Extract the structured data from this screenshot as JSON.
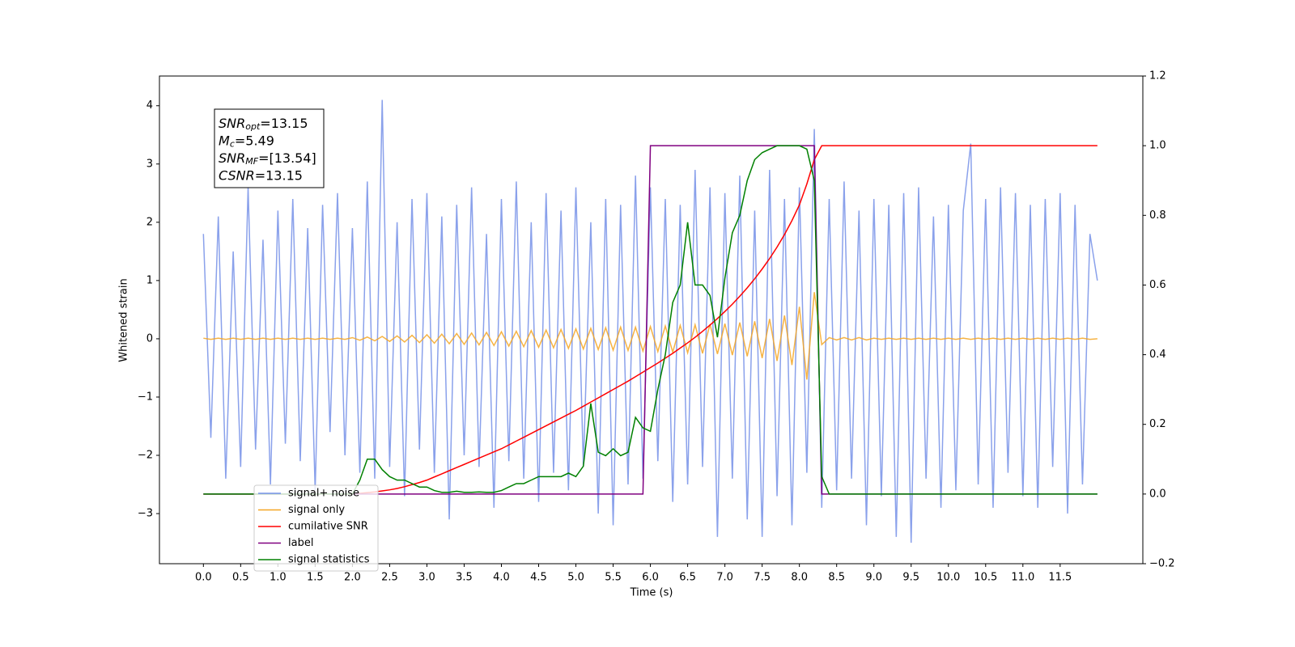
{
  "chart_data": {
    "type": "line",
    "xlabel": "Time (s)",
    "ylabel": "Whitened strain",
    "annotations": [
      {
        "symbol": "SNR",
        "subscript": "opt",
        "text": "=13.15"
      },
      {
        "symbol": "M",
        "subscript": "c",
        "text": "=5.49"
      },
      {
        "symbol": "SNR",
        "subscript": "MF",
        "text": "=[13.54]"
      },
      {
        "symbol": "CSNR",
        "text": "=13.15"
      }
    ],
    "xlim": [
      -0.59,
      12.61
    ],
    "ylim": [
      -3.86,
      4.51
    ],
    "y2lim": [
      -0.2,
      1.2
    ],
    "xticks": [
      {
        "value": 0,
        "label": "0.0"
      },
      0.5,
      {
        "value": 1,
        "label": "1.0"
      },
      1.5,
      {
        "value": 2,
        "label": "2.0"
      },
      2.5,
      {
        "value": 3,
        "label": "3.0"
      },
      3.5,
      {
        "value": 4,
        "label": "4.0"
      },
      4.5,
      {
        "value": 5,
        "label": "5.0"
      },
      5.5,
      {
        "value": 6,
        "label": "6.0"
      },
      6.5,
      {
        "value": 7,
        "label": "7.0"
      },
      7.5,
      {
        "value": 8,
        "label": "8.0"
      },
      8.5,
      {
        "value": 9,
        "label": "9.0"
      },
      9.5,
      {
        "value": 10,
        "label": "10.0"
      },
      10.5,
      {
        "value": 11,
        "label": "11.0"
      },
      11.5
    ],
    "yticks": [
      {
        "value": -3,
        "label": "−3"
      },
      {
        "value": -2,
        "label": "−2"
      },
      {
        "value": -1,
        "label": "−1"
      },
      0,
      1,
      2,
      3,
      4
    ],
    "y2ticks": [
      {
        "value": -0.2,
        "label": "−0.2"
      },
      {
        "value": 0,
        "label": "0.0"
      },
      0.2,
      0.4,
      0.6,
      0.8,
      {
        "value": 1,
        "label": "1.0"
      },
      1.2
    ],
    "legend": "lower left",
    "x": [
      0.0,
      0.1,
      0.2,
      0.3,
      0.4,
      0.5,
      0.6,
      0.7,
      0.8,
      0.9,
      1.0,
      1.1,
      1.2,
      1.3,
      1.4,
      1.5,
      1.6,
      1.7,
      1.8,
      1.9,
      2.0,
      2.1,
      2.2,
      2.3,
      2.4,
      2.5,
      2.6,
      2.7,
      2.8,
      2.9,
      3.0,
      3.1,
      3.2,
      3.3,
      3.4,
      3.5,
      3.6,
      3.7,
      3.8,
      3.9,
      4.0,
      4.1,
      4.2,
      4.3,
      4.4,
      4.5,
      4.6,
      4.7,
      4.8,
      4.9,
      5.0,
      5.1,
      5.2,
      5.3,
      5.4,
      5.5,
      5.6,
      5.7,
      5.8,
      5.9,
      6.0,
      6.1,
      6.2,
      6.3,
      6.4,
      6.5,
      6.6,
      6.7,
      6.8,
      6.9,
      7.0,
      7.1,
      7.2,
      7.3,
      7.4,
      7.5,
      7.6,
      7.7,
      7.8,
      7.9,
      8.0,
      8.1,
      8.2,
      8.3,
      8.4,
      8.5,
      8.6,
      8.7,
      8.8,
      8.9,
      9.0,
      9.1,
      9.2,
      9.3,
      9.4,
      9.5,
      9.6,
      9.7,
      9.8,
      9.9,
      10.0,
      10.1,
      10.2,
      10.3,
      10.4,
      10.5,
      10.6,
      10.7,
      10.8,
      10.9,
      11.0,
      11.1,
      11.2,
      11.3,
      11.4,
      11.5,
      11.6,
      11.7,
      11.8,
      11.9,
      12.0
    ],
    "series": [
      {
        "name": "signal+ noise",
        "color": "#7590e8",
        "values": [
          1.8,
          -1.7,
          2.1,
          -2.4,
          1.5,
          -2.2,
          2.6,
          -1.9,
          1.7,
          -2.5,
          2.2,
          -1.8,
          2.4,
          -2.1,
          1.9,
          -2.6,
          2.3,
          -1.6,
          2.5,
          -2.0,
          1.9,
          -2.3,
          2.7,
          -2.4,
          4.1,
          -2.2,
          2.0,
          -2.7,
          2.4,
          -1.9,
          2.5,
          -2.3,
          2.1,
          -3.1,
          2.3,
          -2.0,
          2.6,
          -2.2,
          1.8,
          -2.9,
          2.4,
          -2.1,
          2.7,
          -2.4,
          2.0,
          -2.8,
          2.5,
          -2.3,
          2.2,
          -2.6,
          2.6,
          -2.2,
          2.0,
          -3.0,
          2.4,
          -3.2,
          2.3,
          -2.5,
          2.8,
          -2.4,
          2.6,
          -2.1,
          2.4,
          -2.8,
          2.3,
          -2.5,
          2.9,
          -2.2,
          2.6,
          -3.4,
          2.5,
          -2.4,
          2.8,
          -3.1,
          2.2,
          -3.4,
          2.9,
          -2.7,
          2.4,
          -3.2,
          2.6,
          -2.3,
          3.6,
          -2.9,
          2.4,
          -2.6,
          2.7,
          -2.4,
          2.2,
          -3.2,
          2.4,
          -2.7,
          2.3,
          -3.4,
          2.5,
          -3.5,
          2.6,
          -2.4,
          2.1,
          -2.9,
          2.3,
          -2.6,
          2.2,
          3.35,
          -2.5,
          2.4,
          -2.9,
          2.6,
          -2.3,
          2.5,
          -2.7,
          2.3,
          -2.9,
          2.4,
          -2.2,
          2.5,
          -3.0,
          2.3,
          -2.5,
          1.8,
          1.0
        ]
      },
      {
        "name": "signal only",
        "color": "#f5a623",
        "values": [
          0.01,
          -0.01,
          0.01,
          -0.01,
          0.01,
          -0.01,
          0.01,
          -0.01,
          0.01,
          -0.01,
          0.01,
          -0.01,
          0.01,
          -0.01,
          0.01,
          -0.01,
          0.01,
          -0.01,
          0.01,
          -0.01,
          0.02,
          -0.025,
          0.03,
          -0.035,
          0.04,
          -0.045,
          0.05,
          -0.055,
          0.06,
          -0.065,
          0.07,
          -0.075,
          0.08,
          -0.085,
          0.09,
          -0.095,
          0.1,
          -0.105,
          0.11,
          -0.115,
          0.12,
          -0.125,
          0.13,
          -0.135,
          0.14,
          -0.145,
          0.15,
          -0.155,
          0.16,
          -0.165,
          0.17,
          -0.175,
          0.18,
          -0.185,
          0.19,
          -0.195,
          0.2,
          -0.2,
          0.2,
          -0.21,
          0.21,
          -0.22,
          0.22,
          -0.23,
          0.23,
          -0.24,
          0.24,
          -0.25,
          0.25,
          -0.26,
          0.26,
          -0.28,
          0.28,
          -0.3,
          0.3,
          -0.33,
          0.34,
          -0.38,
          0.4,
          -0.45,
          0.55,
          -0.7,
          0.8,
          -0.1,
          0.02,
          -0.02,
          0.02,
          -0.02,
          0.02,
          -0.02,
          0.01,
          -0.01,
          0.01,
          -0.01,
          0.01,
          -0.01,
          0.01,
          -0.01,
          0.01,
          -0.01,
          0.01,
          -0.01,
          0.01,
          -0.01,
          0.01,
          -0.01,
          0.01,
          -0.01,
          0.01,
          -0.01,
          0.01,
          -0.01,
          0.01,
          -0.01,
          0.01,
          -0.01,
          0.01,
          -0.01,
          0.01,
          -0.01,
          0.0
        ]
      },
      {
        "name": "cumilative SNR",
        "color": "#ff0000",
        "axis": "y2",
        "values": [
          0,
          0,
          0,
          0,
          0,
          0,
          0,
          0,
          0,
          0,
          0,
          0,
          0,
          0,
          0,
          0,
          0,
          0,
          0,
          0,
          0,
          0.002,
          0.004,
          0.006,
          0.009,
          0.012,
          0.016,
          0.021,
          0.027,
          0.033,
          0.04,
          0.049,
          0.058,
          0.067,
          0.076,
          0.085,
          0.094,
          0.103,
          0.112,
          0.121,
          0.13,
          0.141,
          0.152,
          0.163,
          0.174,
          0.185,
          0.196,
          0.207,
          0.218,
          0.229,
          0.24,
          0.252,
          0.264,
          0.276,
          0.288,
          0.3,
          0.312,
          0.324,
          0.337,
          0.35,
          0.363,
          0.376,
          0.39,
          0.404,
          0.419,
          0.434,
          0.45,
          0.467,
          0.485,
          0.504,
          0.524,
          0.545,
          0.568,
          0.592,
          0.618,
          0.646,
          0.676,
          0.709,
          0.745,
          0.785,
          0.83,
          0.89,
          0.96,
          1,
          1,
          1,
          1,
          1,
          1,
          1,
          1,
          1,
          1,
          1,
          1,
          1,
          1,
          1,
          1,
          1,
          1,
          1,
          1,
          1,
          1,
          1,
          1,
          1,
          1,
          1,
          1,
          1,
          1,
          1,
          1,
          1,
          1,
          1,
          1,
          1,
          1
        ]
      },
      {
        "name": "label",
        "color": "#800080",
        "axis": "y2",
        "values": [
          0,
          0,
          0,
          0,
          0,
          0,
          0,
          0,
          0,
          0,
          0,
          0,
          0,
          0,
          0,
          0,
          0,
          0,
          0,
          0,
          0,
          0,
          0,
          0,
          0,
          0,
          0,
          0,
          0,
          0,
          0,
          0,
          0,
          0,
          0,
          0,
          0,
          0,
          0,
          0,
          0,
          0,
          0,
          0,
          0,
          0,
          0,
          0,
          0,
          0,
          0,
          0,
          0,
          0,
          0,
          0,
          0,
          0,
          0,
          0,
          1,
          1,
          1,
          1,
          1,
          1,
          1,
          1,
          1,
          1,
          1,
          1,
          1,
          1,
          1,
          1,
          1,
          1,
          1,
          1,
          1,
          1,
          1,
          0,
          0,
          0,
          0,
          0,
          0,
          0,
          0,
          0,
          0,
          0,
          0,
          0,
          0,
          0,
          0,
          0,
          0,
          0,
          0,
          0,
          0,
          0,
          0,
          0,
          0,
          0,
          0,
          0,
          0,
          0,
          0,
          0,
          0,
          0,
          0,
          0,
          0
        ]
      },
      {
        "name": "signal statistics",
        "color": "#008000",
        "axis": "y2",
        "values": [
          0,
          0,
          0,
          0,
          0,
          0,
          0,
          0,
          0,
          0,
          0,
          0,
          0,
          0,
          0,
          0,
          0,
          0,
          0,
          0,
          0,
          0.04,
          0.1,
          0.1,
          0.07,
          0.05,
          0.04,
          0.04,
          0.03,
          0.02,
          0.02,
          0.01,
          0.005,
          0.005,
          0.008,
          0.005,
          0.005,
          0.006,
          0.005,
          0.005,
          0.01,
          0.02,
          0.03,
          0.03,
          0.04,
          0.05,
          0.05,
          0.05,
          0.05,
          0.06,
          0.05,
          0.08,
          0.26,
          0.12,
          0.11,
          0.13,
          0.11,
          0.12,
          0.22,
          0.19,
          0.18,
          0.3,
          0.4,
          0.55,
          0.6,
          0.78,
          0.6,
          0.6,
          0.57,
          0.45,
          0.62,
          0.75,
          0.8,
          0.9,
          0.96,
          0.98,
          0.99,
          1,
          1,
          1,
          1,
          0.99,
          0.9,
          0.05,
          0,
          0,
          0,
          0,
          0,
          0,
          0,
          0,
          0,
          0,
          0,
          0,
          0,
          0,
          0,
          0,
          0,
          0,
          0,
          0,
          0,
          0,
          0,
          0,
          0,
          0,
          0,
          0,
          0,
          0,
          0,
          0,
          0,
          0,
          0,
          0,
          0
        ]
      }
    ]
  }
}
